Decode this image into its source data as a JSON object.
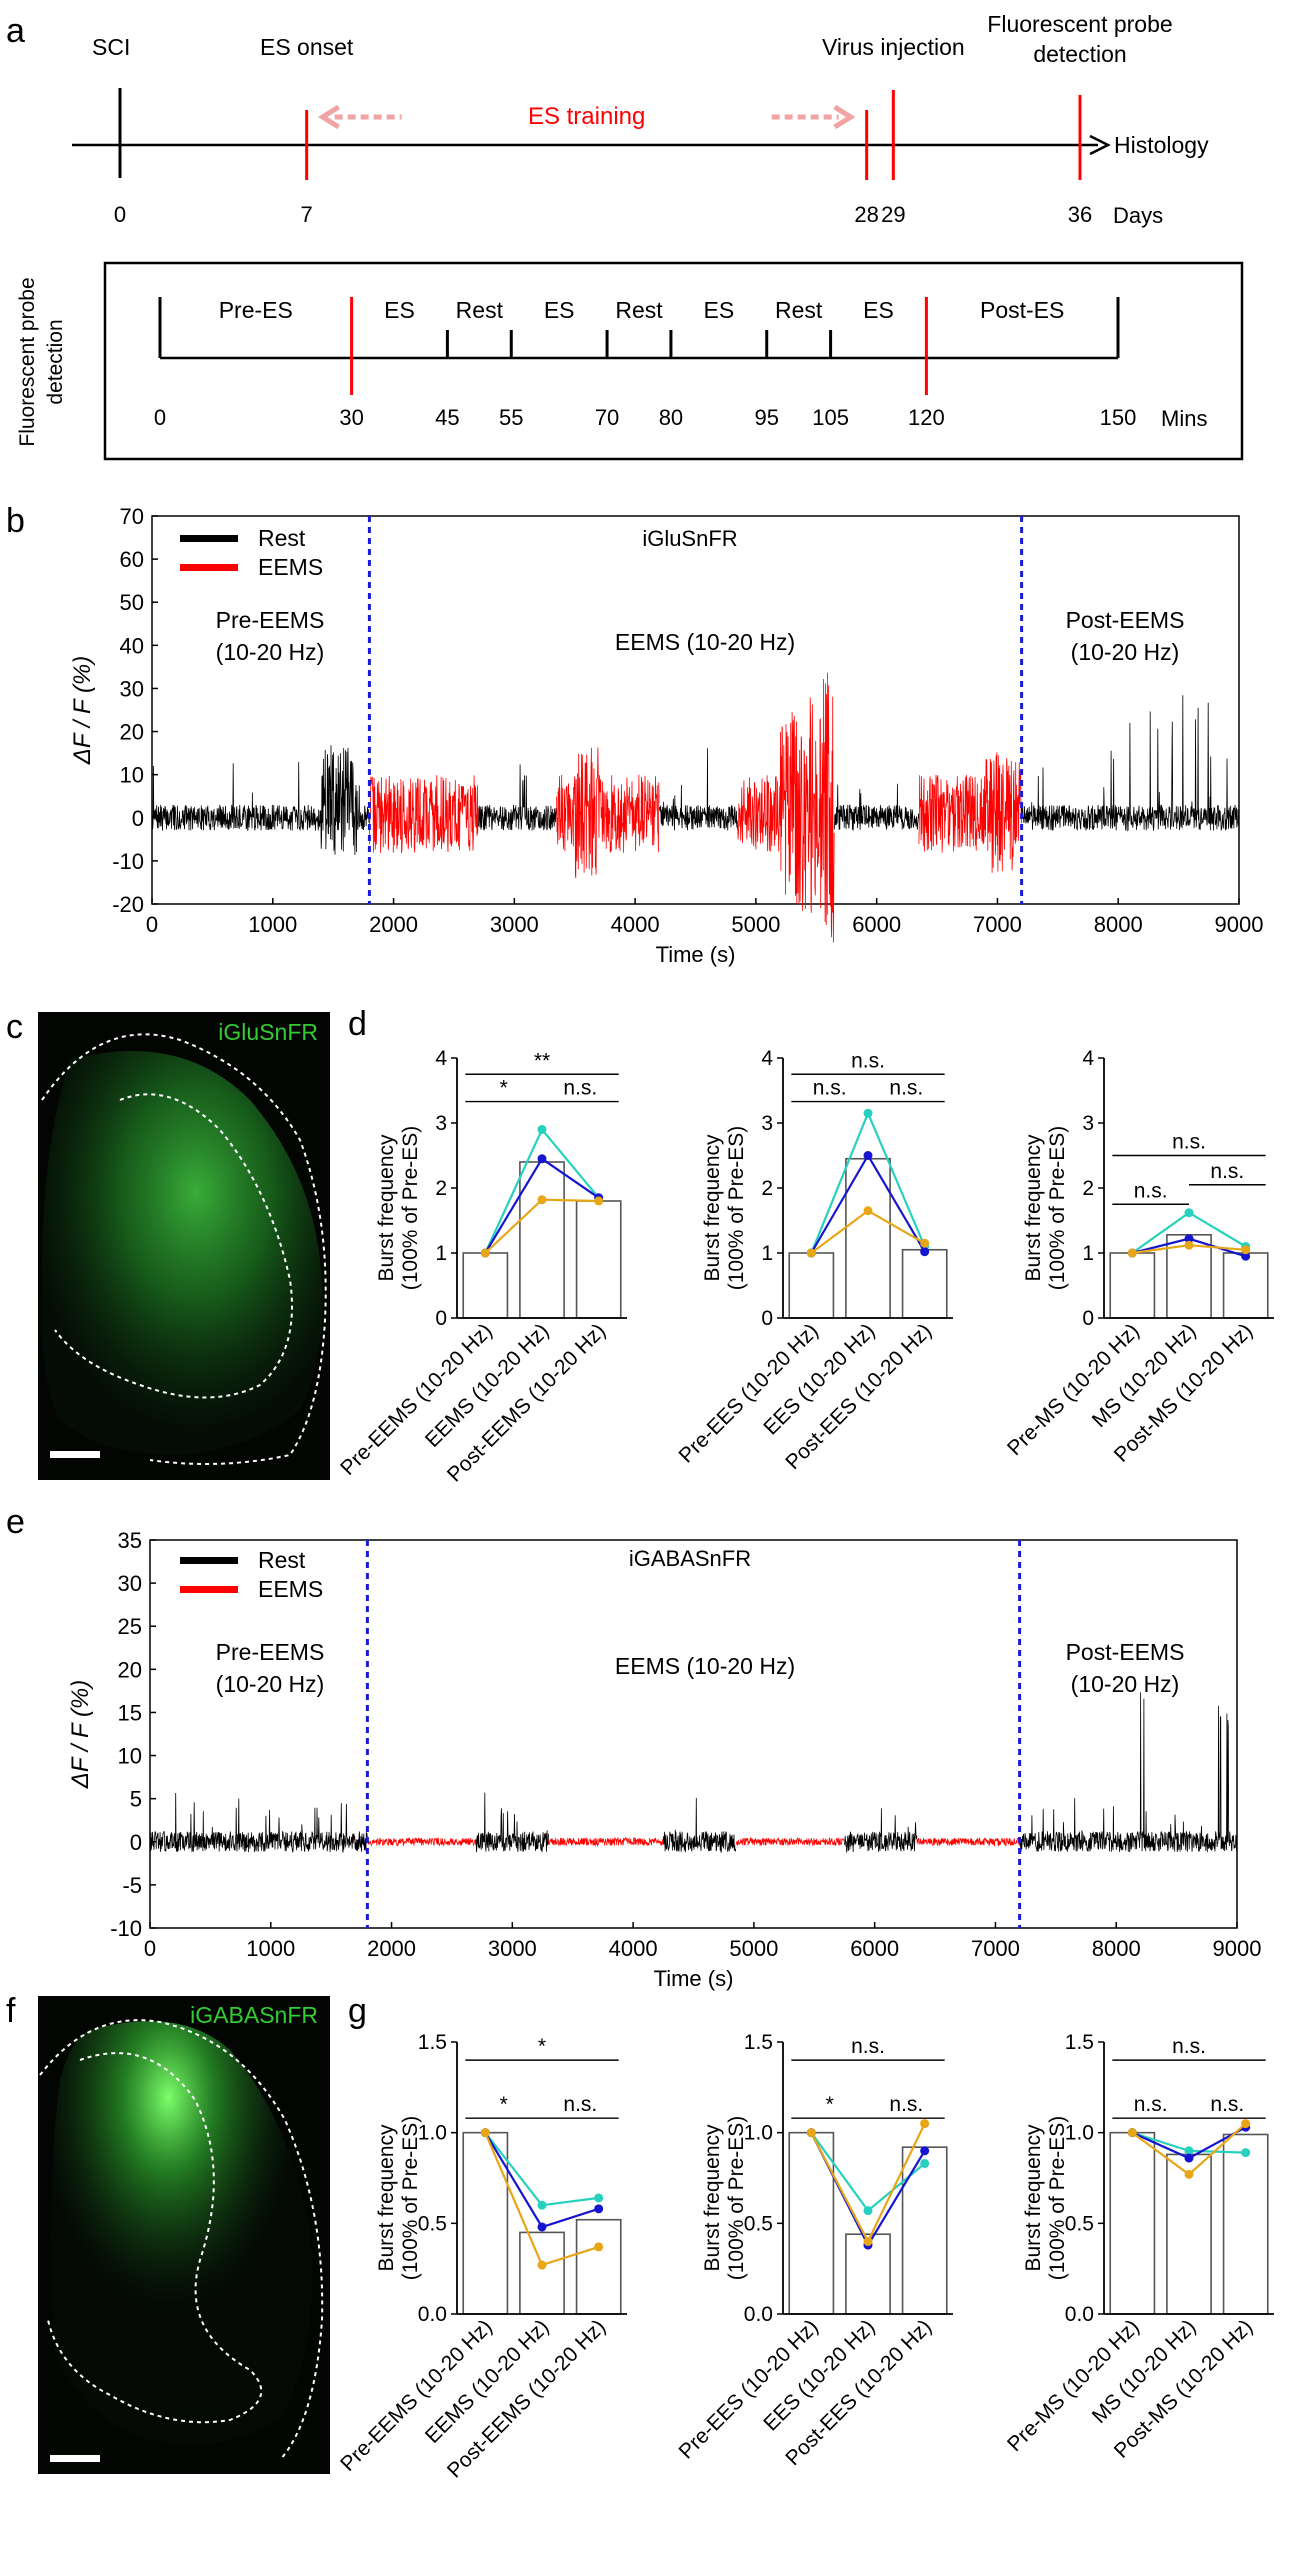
{
  "panels": {
    "a": {
      "letter": "a",
      "timeline": {
        "events": [
          {
            "label": "SCI",
            "day": 0,
            "tick_label": "0"
          },
          {
            "label": "ES onset",
            "day": 7,
            "tick_label": "7"
          },
          {
            "label": "",
            "day": 28,
            "tick_label": "28"
          },
          {
            "label": "Virus injection",
            "day": 29,
            "tick_label": "29"
          },
          {
            "label": "Fluorescent probe detection",
            "day": 36,
            "tick_label": "36"
          }
        ],
        "training_label": "ES training",
        "end_label": "Histology",
        "unit_label": "Days"
      },
      "session": {
        "side_label": "Fluorescent probe detection",
        "ticks": [
          0,
          30,
          45,
          55,
          70,
          80,
          95,
          105,
          120,
          150
        ],
        "red_ticks": [
          30,
          120
        ],
        "phases": [
          {
            "label": "Pre-ES",
            "mid": 15
          },
          {
            "label": "ES",
            "mid": 37.5
          },
          {
            "label": "Rest",
            "mid": 50
          },
          {
            "label": "ES",
            "mid": 62.5
          },
          {
            "label": "Rest",
            "mid": 75
          },
          {
            "label": "ES",
            "mid": 87.5
          },
          {
            "label": "Rest",
            "mid": 100
          },
          {
            "label": "ES",
            "mid": 112.5
          },
          {
            "label": "Post-ES",
            "mid": 135
          }
        ],
        "unit_label": "Mins"
      }
    },
    "b": {
      "letter": "b",
      "title": "iGluSnFR",
      "legend": {
        "rest": "Rest",
        "eems": "EEMS"
      },
      "region_labels": {
        "pre": [
          "Pre-EEMS",
          "(10-20 Hz)"
        ],
        "mid": "EEMS (10-20 Hz)",
        "post": [
          "Post-EEMS",
          "(10-20 Hz)"
        ]
      }
    },
    "c": {
      "letter": "c",
      "label": "iGluSnFR"
    },
    "d": {
      "letter": "d"
    },
    "e": {
      "letter": "e",
      "title": "iGABASnFR",
      "legend": {
        "rest": "Rest",
        "eems": "EEMS"
      },
      "region_labels": {
        "pre": [
          "Pre-EEMS",
          "(10-20 Hz)"
        ],
        "mid": "EEMS (10-20 Hz)",
        "post": [
          "Post-EEMS",
          "(10-20 Hz)"
        ]
      }
    },
    "f": {
      "letter": "f",
      "label": "iGABASnFR"
    },
    "g": {
      "letter": "g"
    }
  },
  "chart_data": [
    {
      "id": "b",
      "type": "line",
      "title": "iGluSnFR",
      "xlabel": "Time (s)",
      "ylabel": "ΔF / F (%)",
      "xlim": [
        0,
        9000
      ],
      "ylim": [
        -20,
        70
      ],
      "xticks": [
        0,
        1000,
        2000,
        3000,
        4000,
        5000,
        6000,
        7000,
        8000,
        9000
      ],
      "yticks": [
        -20,
        -10,
        0,
        10,
        20,
        30,
        40,
        50,
        60,
        70
      ],
      "vlines": [
        1800,
        7200
      ],
      "series": [
        {
          "name": "Rest",
          "color": "#000000"
        },
        {
          "name": "EEMS",
          "color": "#ff0000"
        }
      ],
      "segments": [
        {
          "series": "Rest",
          "start": 0,
          "end": 1800
        },
        {
          "series": "EEMS",
          "start": 1800,
          "end": 2700
        },
        {
          "series": "Rest",
          "start": 2700,
          "end": 3350
        },
        {
          "series": "EEMS",
          "start": 3350,
          "end": 4200
        },
        {
          "series": "Rest",
          "start": 4200,
          "end": 4850
        },
        {
          "series": "EEMS",
          "start": 4850,
          "end": 5650
        },
        {
          "series": "Rest",
          "start": 5650,
          "end": 6350
        },
        {
          "series": "EEMS",
          "start": 6350,
          "end": 7200
        },
        {
          "series": "Rest",
          "start": 7200,
          "end": 9000
        }
      ]
    },
    {
      "id": "d1",
      "type": "bar",
      "categories": [
        "Pre-EEMS (10-20 Hz)",
        "EEMS (10-20 Hz)",
        "Post-EEMS (10-20 Hz)"
      ],
      "values": [
        1.0,
        2.4,
        1.8
      ],
      "ylabel": [
        "Burst frequency",
        "(100% of Pre-ES)"
      ],
      "ylim": [
        0,
        4
      ],
      "yticks": [
        0,
        1,
        2,
        3,
        4
      ],
      "series": [
        {
          "color": "#27d1be",
          "values": [
            1.0,
            2.9,
            1.85
          ]
        },
        {
          "color": "#1515d0",
          "values": [
            1.0,
            2.45,
            1.85
          ]
        },
        {
          "color": "#e8a617",
          "values": [
            1.0,
            1.82,
            1.8
          ]
        }
      ],
      "sig": [
        {
          "from": 0,
          "to": 1,
          "y": 3.33,
          "label": "*"
        },
        {
          "from": 0,
          "to": 2,
          "y": 3.75,
          "label": "**"
        },
        {
          "from": 1,
          "to": 2,
          "y": 3.33,
          "label": "n.s."
        }
      ]
    },
    {
      "id": "d2",
      "type": "bar",
      "categories": [
        "Pre-EES (10-20 Hz)",
        "EES (10-20 Hz)",
        "Post-EES (10-20 Hz)"
      ],
      "values": [
        1.0,
        2.45,
        1.05
      ],
      "ylabel": [
        "Burst frequency",
        "(100% of Pre-ES)"
      ],
      "ylim": [
        0,
        4
      ],
      "yticks": [
        0,
        1,
        2,
        3,
        4
      ],
      "series": [
        {
          "color": "#27d1be",
          "values": [
            1.0,
            3.15,
            1.1
          ]
        },
        {
          "color": "#1515d0",
          "values": [
            1.0,
            2.5,
            1.02
          ]
        },
        {
          "color": "#e8a617",
          "values": [
            1.0,
            1.65,
            1.15
          ]
        }
      ],
      "sig": [
        {
          "from": 0,
          "to": 1,
          "y": 3.33,
          "label": "n.s."
        },
        {
          "from": 0,
          "to": 2,
          "y": 3.75,
          "label": "n.s."
        },
        {
          "from": 1,
          "to": 2,
          "y": 3.33,
          "label": "n.s."
        }
      ]
    },
    {
      "id": "d3",
      "type": "bar",
      "categories": [
        "Pre-MS (10-20 Hz)",
        "MS (10-20 Hz)",
        "Post-MS (10-20 Hz)"
      ],
      "values": [
        1.0,
        1.28,
        1.0
      ],
      "ylabel": [
        "Burst frequency",
        "(100% of Pre-ES)"
      ],
      "ylim": [
        0,
        4
      ],
      "yticks": [
        0,
        1,
        2,
        3,
        4
      ],
      "series": [
        {
          "color": "#27d1be",
          "values": [
            1.0,
            1.62,
            1.1
          ]
        },
        {
          "color": "#1515d0",
          "values": [
            1.0,
            1.22,
            0.95
          ]
        },
        {
          "color": "#e8a617",
          "values": [
            1.0,
            1.12,
            1.05
          ]
        }
      ],
      "sig": [
        {
          "from": 0,
          "to": 1,
          "y": 1.75,
          "label": "n.s."
        },
        {
          "from": 0,
          "to": 2,
          "y": 2.5,
          "label": "n.s."
        },
        {
          "from": 1,
          "to": 2,
          "y": 2.05,
          "label": "n.s."
        }
      ]
    },
    {
      "id": "e",
      "type": "line",
      "title": "iGABASnFR",
      "xlabel": "Time (s)",
      "ylabel": "ΔF / F (%)",
      "xlim": [
        0,
        9000
      ],
      "ylim": [
        -10,
        35
      ],
      "xticks": [
        0,
        1000,
        2000,
        3000,
        4000,
        5000,
        6000,
        7000,
        8000,
        9000
      ],
      "yticks": [
        -10,
        -5,
        0,
        5,
        10,
        15,
        20,
        25,
        30,
        35
      ],
      "vlines": [
        1800,
        7200
      ],
      "series": [
        {
          "name": "Rest",
          "color": "#000000"
        },
        {
          "name": "EEMS",
          "color": "#ff0000"
        }
      ],
      "segments": [
        {
          "series": "Rest",
          "start": 0,
          "end": 1800
        },
        {
          "series": "EEMS",
          "start": 1800,
          "end": 2700
        },
        {
          "series": "Rest",
          "start": 2700,
          "end": 3300
        },
        {
          "series": "EEMS",
          "start": 3300,
          "end": 4250
        },
        {
          "series": "Rest",
          "start": 4250,
          "end": 4850
        },
        {
          "series": "EEMS",
          "start": 4850,
          "end": 5750
        },
        {
          "series": "Rest",
          "start": 5750,
          "end": 6350
        },
        {
          "series": "EEMS",
          "start": 6350,
          "end": 7200
        },
        {
          "series": "Rest",
          "start": 7200,
          "end": 9000
        }
      ]
    },
    {
      "id": "g1",
      "type": "bar",
      "categories": [
        "Pre-EEMS (10-20 Hz)",
        "EEMS (10-20 Hz)",
        "Post-EEMS (10-20 Hz)"
      ],
      "values": [
        1.0,
        0.45,
        0.52
      ],
      "ylabel": [
        "Burst frequency",
        "(100% of Pre-ES)"
      ],
      "ylim": [
        0,
        1.5
      ],
      "yticks": [
        0.0,
        0.5,
        1.0,
        1.5
      ],
      "series": [
        {
          "color": "#27d1be",
          "values": [
            1.0,
            0.6,
            0.64
          ]
        },
        {
          "color": "#1515d0",
          "values": [
            1.0,
            0.48,
            0.58
          ]
        },
        {
          "color": "#e8a617",
          "values": [
            1.0,
            0.27,
            0.37
          ]
        }
      ],
      "sig": [
        {
          "from": 0,
          "to": 1,
          "y": 1.08,
          "label": "*"
        },
        {
          "from": 0,
          "to": 2,
          "y": 1.4,
          "label": "*"
        },
        {
          "from": 1,
          "to": 2,
          "y": 1.08,
          "label": "n.s."
        }
      ]
    },
    {
      "id": "g2",
      "type": "bar",
      "categories": [
        "Pre-EES (10-20 Hz)",
        "EES (10-20 Hz)",
        "Post-EES (10-20 Hz)"
      ],
      "values": [
        1.0,
        0.44,
        0.92
      ],
      "ylabel": [
        "Burst frequency",
        "(100% of Pre-ES)"
      ],
      "ylim": [
        0,
        1.5
      ],
      "yticks": [
        0.0,
        0.5,
        1.0,
        1.5
      ],
      "series": [
        {
          "color": "#27d1be",
          "values": [
            1.0,
            0.57,
            0.83
          ]
        },
        {
          "color": "#1515d0",
          "values": [
            1.0,
            0.38,
            0.9
          ]
        },
        {
          "color": "#e8a617",
          "values": [
            1.0,
            0.4,
            1.05
          ]
        }
      ],
      "sig": [
        {
          "from": 0,
          "to": 1,
          "y": 1.08,
          "label": "*"
        },
        {
          "from": 0,
          "to": 2,
          "y": 1.4,
          "label": "n.s."
        },
        {
          "from": 1,
          "to": 2,
          "y": 1.08,
          "label": "n.s."
        }
      ]
    },
    {
      "id": "g3",
      "type": "bar",
      "categories": [
        "Pre-MS (10-20 Hz)",
        "MS (10-20 Hz)",
        "Post-MS (10-20 Hz)"
      ],
      "values": [
        1.0,
        0.88,
        0.99
      ],
      "ylabel": [
        "Burst frequency",
        "(100% of Pre-ES)"
      ],
      "ylim": [
        0,
        1.5
      ],
      "yticks": [
        0.0,
        0.5,
        1.0,
        1.5
      ],
      "series": [
        {
          "color": "#27d1be",
          "values": [
            1.0,
            0.9,
            0.89
          ]
        },
        {
          "color": "#1515d0",
          "values": [
            1.0,
            0.86,
            1.03
          ]
        },
        {
          "color": "#e8a617",
          "values": [
            1.0,
            0.77,
            1.05
          ]
        }
      ],
      "sig": [
        {
          "from": 0,
          "to": 1,
          "y": 1.08,
          "label": "n.s."
        },
        {
          "from": 0,
          "to": 2,
          "y": 1.4,
          "label": "n.s."
        },
        {
          "from": 1,
          "to": 2,
          "y": 1.08,
          "label": "n.s."
        }
      ]
    }
  ]
}
